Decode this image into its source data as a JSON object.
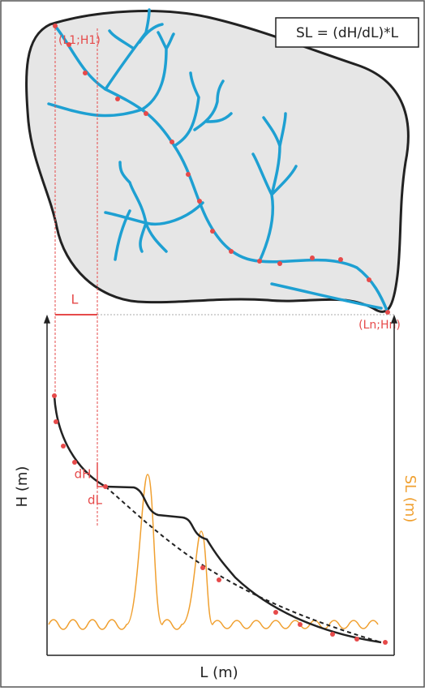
{
  "formula": "SL = (dH/dL)*L",
  "points": {
    "start": "(L1;H1)",
    "end": "(Ln;Hn)"
  },
  "labels": {
    "segment": "L",
    "y_axis": "H (m)",
    "y2_axis": "SL (m)",
    "dH": "dH",
    "dL": "dL",
    "x_axis": "L (m)"
  }
}
